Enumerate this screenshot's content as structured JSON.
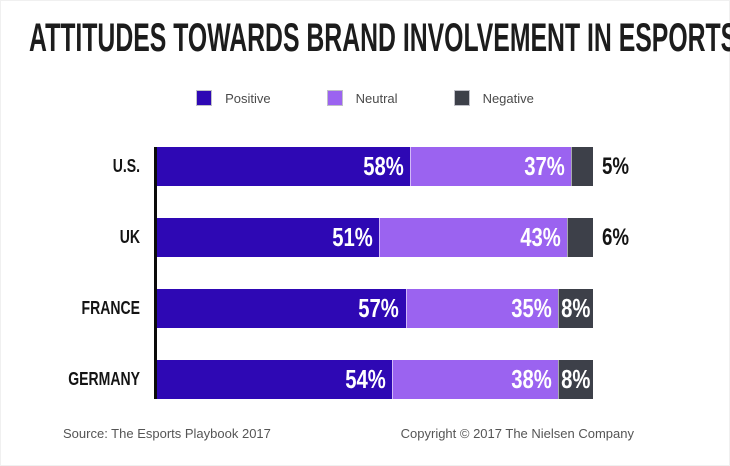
{
  "title": "ATTITUDES TOWARDS BRAND INVOLVEMENT IN ESPORTS",
  "legend": [
    {
      "label": "Positive",
      "color": "#2e08b4",
      "icon": "swatch-square"
    },
    {
      "label": "Neutral",
      "color": "#9b63f0",
      "icon": "swatch-square"
    },
    {
      "label": "Negative",
      "color": "#3d4049",
      "icon": "swatch-square"
    }
  ],
  "chart_data": {
    "type": "bar",
    "orientation": "horizontal",
    "stacked": true,
    "title": "ATTITUDES TOWARDS BRAND INVOLVEMENT IN ESPORTS",
    "categories": [
      "U.S.",
      "UK",
      "FRANCE",
      "GERMANY"
    ],
    "series": [
      {
        "name": "Positive",
        "color": "#2e08b4",
        "values": [
          58,
          51,
          57,
          54
        ]
      },
      {
        "name": "Neutral",
        "color": "#9b63f0",
        "values": [
          37,
          43,
          35,
          38
        ]
      },
      {
        "name": "Negative",
        "color": "#3d4049",
        "values": [
          5,
          6,
          8,
          8
        ]
      }
    ],
    "value_suffix": "%",
    "xlim": [
      0,
      100
    ],
    "grid": false,
    "legend_position": "top-center",
    "axis_color": "#0b0b0b",
    "negative_label_outside": [
      true,
      true,
      false,
      false
    ]
  },
  "footer": {
    "source": "Source: The Esports Playbook 2017",
    "copyright": "Copyright © 2017 The Nielsen Company"
  }
}
